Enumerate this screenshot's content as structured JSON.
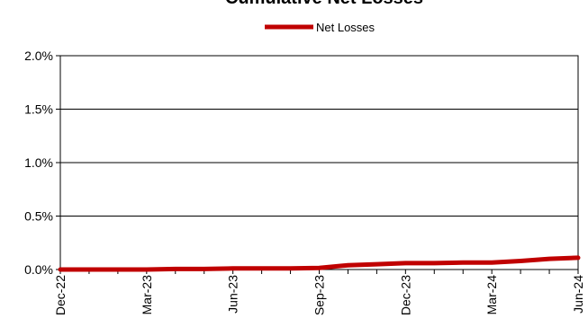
{
  "chart_data": {
    "type": "line",
    "title": "Cumulative Net Losses",
    "xlabel": "",
    "ylabel": "",
    "ylim": [
      0,
      0.02
    ],
    "yticks": [
      "0.0%",
      "0.5%",
      "1.0%",
      "1.5%",
      "2.0%"
    ],
    "ytick_values": [
      0,
      0.005,
      0.01,
      0.015,
      0.02
    ],
    "grid": true,
    "legend_position": "top-center",
    "x": [
      "Dec-22",
      "Jan-23",
      "Feb-23",
      "Mar-23",
      "Apr-23",
      "May-23",
      "Jun-23",
      "Jul-23",
      "Aug-23",
      "Sep-23",
      "Oct-23",
      "Nov-23",
      "Dec-23",
      "Jan-24",
      "Feb-24",
      "Mar-24",
      "Apr-24",
      "May-24",
      "Jun-24"
    ],
    "xtick_labels": [
      "Dec-22",
      "Mar-23",
      "Jun-23",
      "Sep-23",
      "Dec-23",
      "Mar-24",
      "Jun-24"
    ],
    "series": [
      {
        "name": "Net Losses",
        "color": "#c00000",
        "values": [
          0.0,
          0.0,
          0.0,
          0.0,
          5e-05,
          5e-05,
          0.0001,
          0.0001,
          0.0001,
          0.00015,
          0.0004,
          0.0005,
          0.0006,
          0.0006,
          0.00065,
          0.00065,
          0.0008,
          0.001,
          0.0011
        ]
      }
    ]
  }
}
